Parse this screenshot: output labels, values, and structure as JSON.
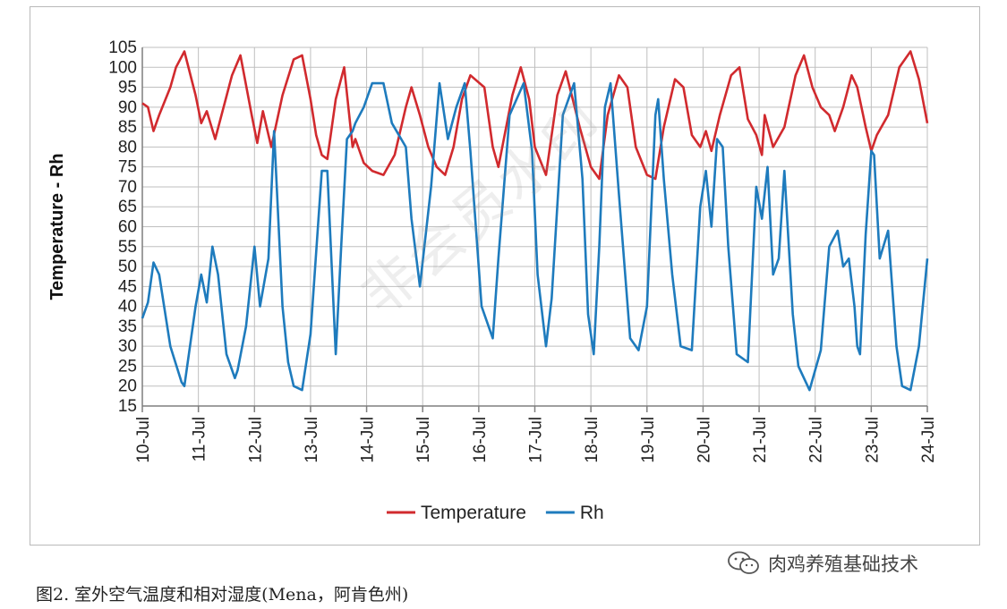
{
  "caption": "图2. 室外空气温度和相对湿度(Mena，阿肯色州)",
  "watermark": {
    "account": "肉鸡养殖基础技术",
    "background_text": "非会员水印"
  },
  "colors": {
    "temperature": "#d12a2e",
    "rh": "#1e7bbd",
    "grid": "#bfbfbf",
    "axis": "#7f7f7f"
  },
  "chart_data": {
    "type": "line",
    "title": "",
    "xlabel": "",
    "ylabel": "Temperature - Rh",
    "ylim": [
      15,
      105
    ],
    "yticks": [
      15,
      20,
      25,
      30,
      35,
      40,
      45,
      50,
      55,
      60,
      65,
      70,
      75,
      80,
      85,
      90,
      95,
      100,
      105
    ],
    "x_categories": [
      "10-Jul",
      "11-Jul",
      "12-Jul",
      "13-Jul",
      "14-Jul",
      "15-Jul",
      "16-Jul",
      "17-Jul",
      "18-Jul",
      "19-Jul",
      "20-Jul",
      "21-Jul",
      "22-Jul",
      "23-Jul",
      "24-Jul"
    ],
    "xlim_days": [
      0,
      14
    ],
    "grid": true,
    "legend_position": "bottom",
    "series": [
      {
        "name": "Temperature",
        "x_days": [
          0,
          0.1,
          0.2,
          0.3,
          0.5,
          0.6,
          0.75,
          0.95,
          1.05,
          1.15,
          1.3,
          1.45,
          1.6,
          1.75,
          1.95,
          2.05,
          2.15,
          2.3,
          2.5,
          2.7,
          2.85,
          3.0,
          3.1,
          3.2,
          3.3,
          3.45,
          3.6,
          3.75,
          3.8,
          3.95,
          4.1,
          4.3,
          4.5,
          4.7,
          4.8,
          4.95,
          5.1,
          5.25,
          5.4,
          5.55,
          5.7,
          5.85,
          6.1,
          6.25,
          6.35,
          6.6,
          6.75,
          6.9,
          7.0,
          7.2,
          7.4,
          7.55,
          7.8,
          8.0,
          8.15,
          8.3,
          8.5,
          8.65,
          8.8,
          9.0,
          9.15,
          9.3,
          9.5,
          9.65,
          9.8,
          9.95,
          10.05,
          10.15,
          10.3,
          10.5,
          10.65,
          10.8,
          10.95,
          11.05,
          11.1,
          11.25,
          11.45,
          11.65,
          11.8,
          11.95,
          12.1,
          12.25,
          12.35,
          12.5,
          12.65,
          12.75,
          12.9,
          13.0,
          13.1,
          13.3,
          13.5,
          13.7,
          13.85,
          14.0
        ],
        "values": [
          91,
          90,
          84,
          88,
          95,
          100,
          104,
          93,
          86,
          89,
          82,
          90,
          98,
          103,
          88,
          81,
          89,
          80,
          93,
          102,
          103,
          92,
          83,
          78,
          77,
          92,
          100,
          80,
          82,
          76,
          74,
          73,
          78,
          90,
          95,
          88,
          80,
          75,
          73,
          80,
          92,
          98,
          95,
          80,
          75,
          93,
          100,
          92,
          80,
          73,
          93,
          99,
          85,
          75,
          72,
          88,
          98,
          95,
          80,
          73,
          72,
          85,
          97,
          95,
          83,
          80,
          84,
          79,
          88,
          98,
          100,
          87,
          83,
          78,
          88,
          80,
          85,
          98,
          103,
          95,
          90,
          88,
          84,
          90,
          98,
          95,
          85,
          79,
          83,
          88,
          100,
          104,
          97,
          86
        ]
      },
      {
        "name": "Rh",
        "x_days": [
          0,
          0.1,
          0.2,
          0.3,
          0.5,
          0.7,
          0.75,
          0.95,
          1.05,
          1.15,
          1.25,
          1.35,
          1.5,
          1.65,
          1.7,
          1.85,
          2.0,
          2.1,
          2.25,
          2.35,
          2.5,
          2.6,
          2.7,
          2.85,
          3.0,
          3.2,
          3.3,
          3.45,
          3.55,
          3.65,
          3.75,
          3.8,
          3.95,
          4.1,
          4.3,
          4.45,
          4.7,
          4.8,
          4.95,
          5.15,
          5.3,
          5.45,
          5.6,
          5.75,
          5.85,
          6.05,
          6.25,
          6.35,
          6.55,
          6.8,
          6.95,
          7.05,
          7.2,
          7.3,
          7.5,
          7.7,
          7.85,
          7.95,
          8.05,
          8.15,
          8.25,
          8.35,
          8.5,
          8.7,
          8.85,
          9.0,
          9.15,
          9.2,
          9.3,
          9.45,
          9.6,
          9.8,
          9.95,
          10.05,
          10.15,
          10.25,
          10.35,
          10.45,
          10.6,
          10.8,
          10.95,
          11.05,
          11.15,
          11.25,
          11.35,
          11.45,
          11.6,
          11.7,
          11.9,
          12.1,
          12.25,
          12.4,
          12.5,
          12.6,
          12.7,
          12.75,
          12.8,
          12.9,
          13.0,
          13.05,
          13.15,
          13.3,
          13.45,
          13.55,
          13.7,
          13.85,
          14.0
        ],
        "values": [
          37,
          41,
          51,
          48,
          30,
          21,
          20,
          40,
          48,
          41,
          55,
          48,
          28,
          22,
          24,
          35,
          55,
          40,
          52,
          84,
          40,
          26,
          20,
          19,
          33,
          74,
          74,
          28,
          56,
          82,
          84,
          86,
          90,
          96,
          96,
          86,
          80,
          62,
          45,
          70,
          96,
          82,
          90,
          96,
          79,
          40,
          32,
          52,
          88,
          96,
          79,
          48,
          30,
          42,
          88,
          96,
          72,
          38,
          28,
          55,
          90,
          96,
          68,
          32,
          29,
          40,
          88,
          92,
          72,
          48,
          30,
          29,
          65,
          74,
          60,
          82,
          80,
          55,
          28,
          26,
          70,
          62,
          75,
          48,
          52,
          74,
          38,
          25,
          19,
          29,
          55,
          59,
          50,
          52,
          40,
          30,
          28,
          58,
          79,
          78,
          52,
          59,
          30,
          20,
          19,
          30,
          52
        ]
      }
    ]
  }
}
